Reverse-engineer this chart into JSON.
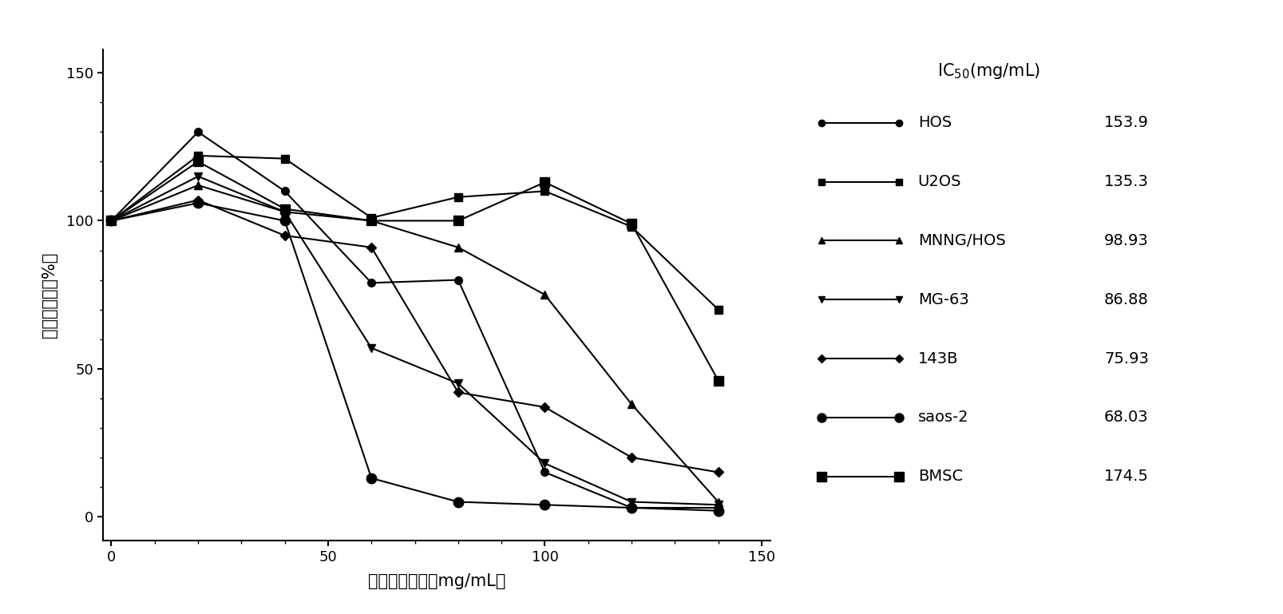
{
  "xlabel": "通关藤提取液（mg/mL）",
  "ylabel": "细胞存活率（%）",
  "xlim": [
    -2,
    152
  ],
  "ylim": [
    -8,
    158
  ],
  "xticks": [
    0,
    50,
    100,
    150
  ],
  "yticks": [
    0,
    50,
    100,
    150
  ],
  "series": [
    {
      "name": "HOS",
      "ic50": "153.9",
      "marker": "o",
      "markersize": 7,
      "x": [
        0,
        20,
        40,
        60,
        80,
        100,
        120,
        140
      ],
      "y": [
        100,
        130,
        110,
        79,
        80,
        15,
        3,
        3
      ]
    },
    {
      "name": "U2OS",
      "ic50": "135.3",
      "marker": "s",
      "markersize": 7,
      "x": [
        0,
        20,
        40,
        60,
        80,
        100,
        120,
        140
      ],
      "y": [
        100,
        122,
        121,
        101,
        108,
        110,
        98,
        70
      ]
    },
    {
      "name": "MNNG/HOS",
      "ic50": "98.93",
      "marker": "^",
      "markersize": 7,
      "x": [
        0,
        20,
        40,
        60,
        80,
        100,
        120,
        140
      ],
      "y": [
        100,
        112,
        103,
        100,
        91,
        75,
        38,
        5
      ]
    },
    {
      "name": "MG-63",
      "ic50": "86.88",
      "marker": "v",
      "markersize": 7,
      "x": [
        0,
        20,
        40,
        60,
        80,
        100,
        120,
        140
      ],
      "y": [
        100,
        115,
        103,
        57,
        45,
        18,
        5,
        4
      ]
    },
    {
      "name": "143B",
      "ic50": "75.93",
      "marker": "D",
      "markersize": 6,
      "x": [
        0,
        20,
        40,
        60,
        80,
        100,
        120,
        140
      ],
      "y": [
        100,
        107,
        95,
        91,
        42,
        37,
        20,
        15
      ]
    },
    {
      "name": "saos-2",
      "ic50": "68.03",
      "marker": "o",
      "markersize": 9,
      "x": [
        0,
        20,
        40,
        60,
        80,
        100,
        120,
        140
      ],
      "y": [
        100,
        106,
        100,
        13,
        5,
        4,
        3,
        2
      ]
    },
    {
      "name": "BMSC",
      "ic50": "174.5",
      "marker": "s",
      "markersize": 9,
      "x": [
        0,
        20,
        40,
        60,
        80,
        100,
        120,
        140
      ],
      "y": [
        100,
        120,
        104,
        100,
        100,
        113,
        99,
        46
      ]
    }
  ],
  "line_color": "#000000",
  "font_size": 13,
  "tick_font_size": 13,
  "label_font_size": 15,
  "legend_title_fontsize": 15,
  "legend_name_fontsize": 14,
  "legend_ic50_fontsize": 14
}
